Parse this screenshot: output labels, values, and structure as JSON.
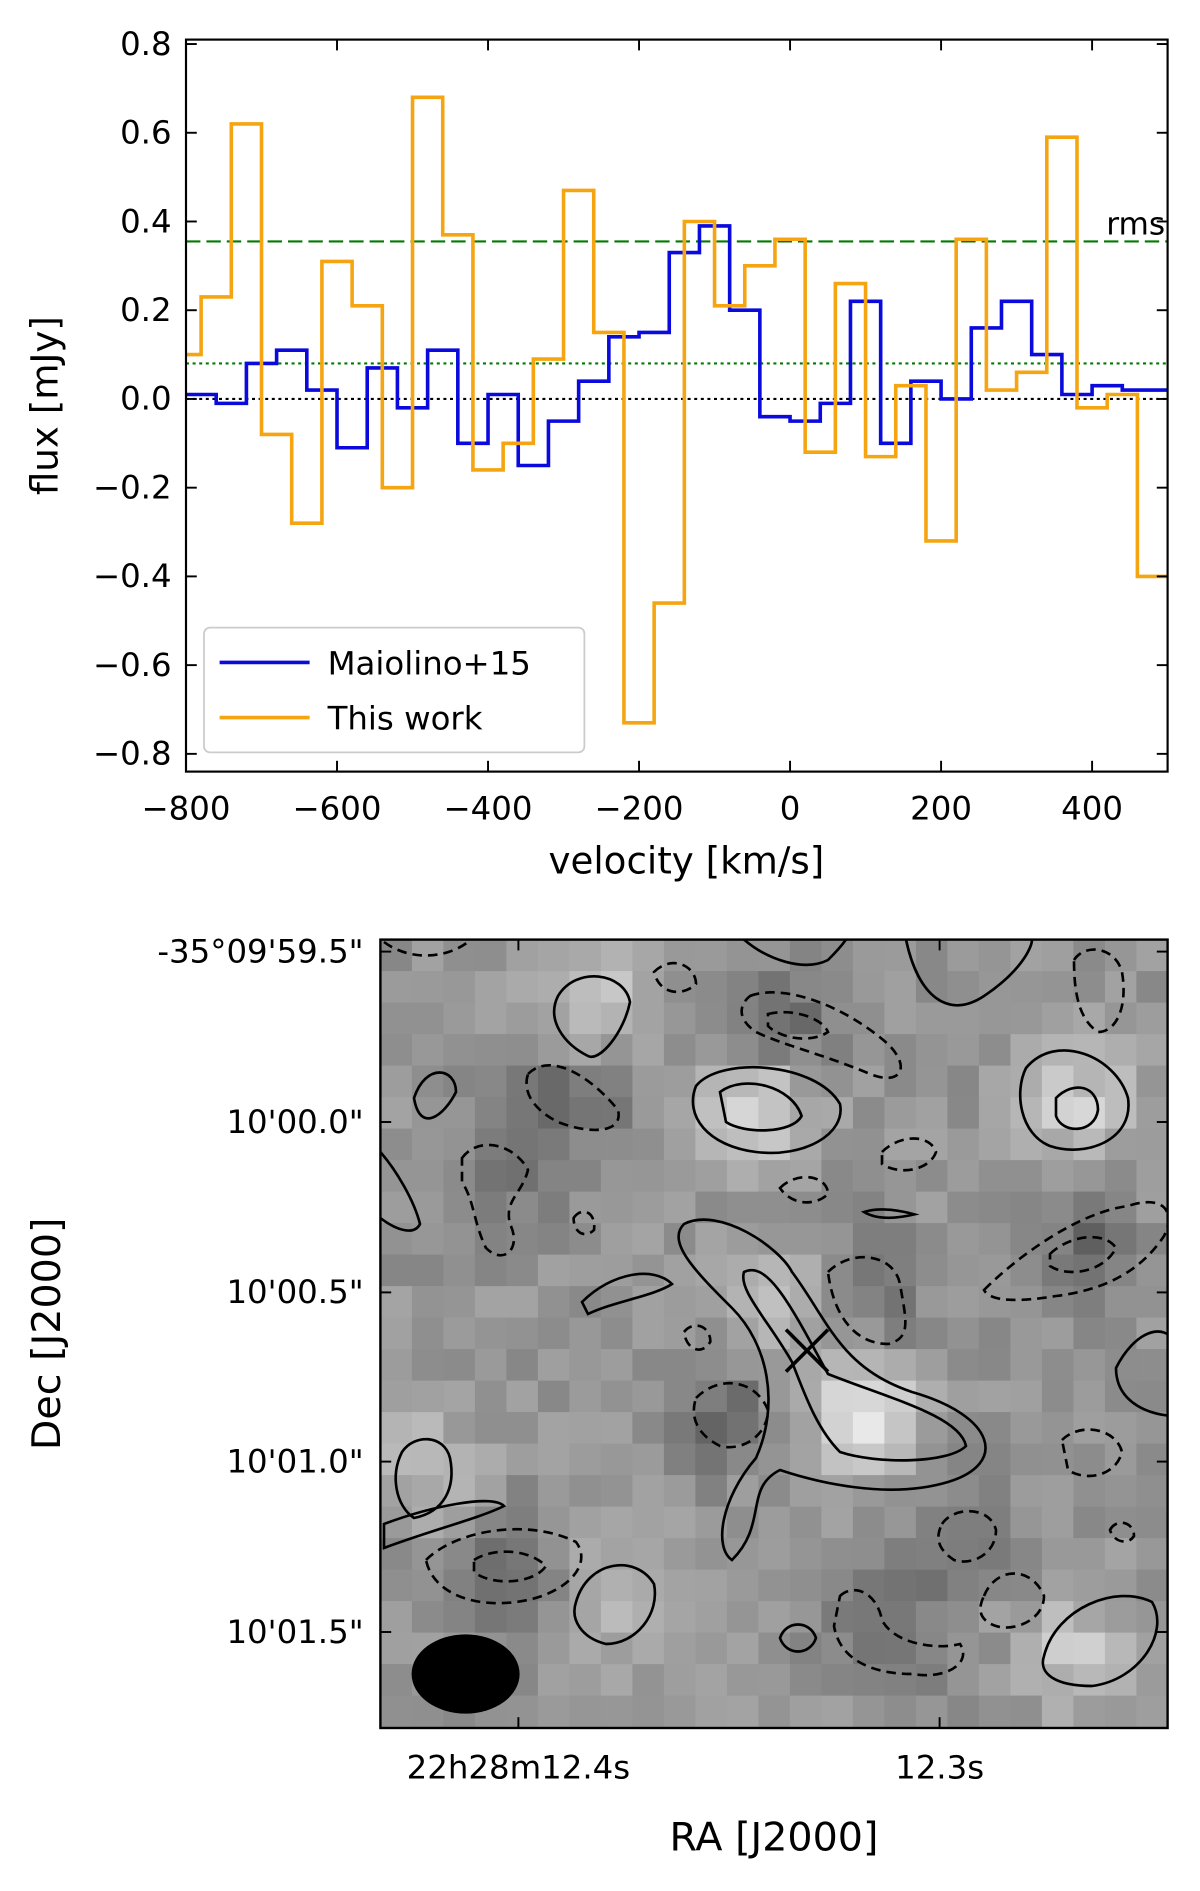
{
  "chart_data": [
    {
      "type": "step",
      "xlabel": "velocity [km/s]",
      "ylabel": "flux [mJy]",
      "xlim": [
        -800,
        500
      ],
      "ylim": [
        -0.84,
        0.81
      ],
      "xticks": [
        {
          "value": -800,
          "label": "−800"
        },
        {
          "value": -600,
          "label": "−600"
        },
        {
          "value": -400,
          "label": "−400"
        },
        {
          "value": -200,
          "label": "−200"
        },
        0,
        200,
        400
      ],
      "yticks": [
        {
          "value": -0.8,
          "label": "−0.8"
        },
        {
          "value": -0.6,
          "label": "−0.6"
        },
        {
          "value": -0.4,
          "label": "−0.4"
        },
        {
          "value": -0.2,
          "label": "−0.2"
        },
        {
          "value": 0,
          "label": "0.0"
        },
        0.2,
        0.4,
        0.6,
        0.8
      ],
      "legend": "lower left",
      "hlines": [
        {
          "value": 0,
          "color": "#000000",
          "style": "dotted"
        },
        {
          "value": 0.355,
          "color": "#007a00",
          "style": "dashed",
          "label": "rms"
        },
        {
          "value": 0.08,
          "color": "#007a00",
          "style": "dotted"
        }
      ],
      "series": [
        {
          "name": "Maiolino+15",
          "color": "#0a0adc",
          "x": [
            -800,
            -760,
            -720,
            -680,
            -640,
            -600,
            -560,
            -520,
            -480,
            -440,
            -400,
            -360,
            -320,
            -280,
            -240,
            -200,
            -160,
            -120,
            -80,
            -40,
            0,
            40,
            80,
            120,
            160,
            200,
            240,
            280,
            320,
            360,
            400,
            440
          ],
          "values": [
            0.01,
            -0.01,
            0.08,
            0.11,
            0.02,
            -0.11,
            0.07,
            -0.02,
            0.11,
            -0.1,
            0.01,
            -0.15,
            -0.05,
            0.04,
            0.14,
            0.15,
            0.33,
            0.39,
            0.2,
            -0.04,
            -0.05,
            -0.01,
            0.22,
            -0.1,
            0.04,
            0.0,
            0.16,
            0.22,
            0.1,
            0.01,
            0.03,
            0.02
          ]
        },
        {
          "name": "This work",
          "color": "#f5a511",
          "x": [
            -800,
            -780,
            -740,
            -700,
            -660,
            -620,
            -580,
            -540,
            -500,
            -460,
            -420,
            -380,
            -340,
            -300,
            -260,
            -220,
            -180,
            -140,
            -100,
            -60,
            -20,
            20,
            60,
            100,
            140,
            180,
            220,
            260,
            300,
            340,
            380,
            420,
            460
          ],
          "values": [
            0.1,
            0.23,
            0.62,
            -0.08,
            -0.28,
            0.31,
            0.21,
            -0.2,
            0.68,
            0.37,
            -0.16,
            -0.1,
            0.09,
            0.47,
            0.15,
            -0.73,
            -0.46,
            0.4,
            0.21,
            0.3,
            0.36,
            -0.12,
            0.26,
            -0.13,
            0.03,
            -0.32,
            0.36,
            0.02,
            0.06,
            0.59,
            -0.02,
            0.01,
            -0.4
          ]
        }
      ]
    },
    {
      "type": "image",
      "xlabel": "RA [J2000]",
      "ylabel": "Dec [J2000]",
      "xticks": [
        "22h28m12.4s",
        "12.3s"
      ],
      "yticks": [
        "-35°09'59.5\"",
        "10'00.0\"",
        "10'00.5\"",
        "10'01.0\"",
        "10'01.5\""
      ]
    }
  ]
}
